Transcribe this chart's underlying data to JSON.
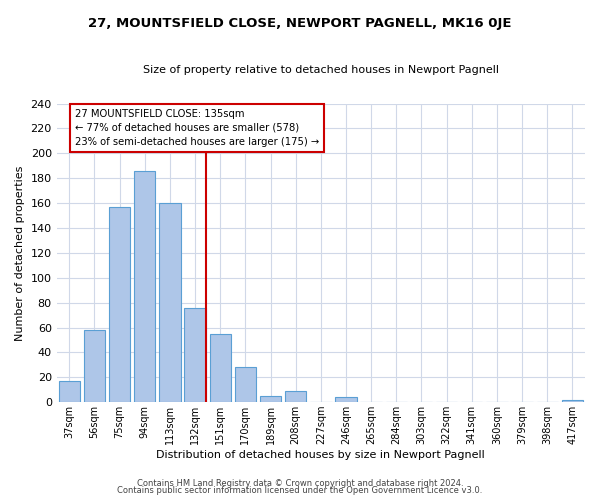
{
  "title": "27, MOUNTSFIELD CLOSE, NEWPORT PAGNELL, MK16 0JE",
  "subtitle": "Size of property relative to detached houses in Newport Pagnell",
  "xlabel": "Distribution of detached houses by size in Newport Pagnell",
  "ylabel": "Number of detached properties",
  "bar_labels": [
    "37sqm",
    "56sqm",
    "75sqm",
    "94sqm",
    "113sqm",
    "132sqm",
    "151sqm",
    "170sqm",
    "189sqm",
    "208sqm",
    "227sqm",
    "246sqm",
    "265sqm",
    "284sqm",
    "303sqm",
    "322sqm",
    "341sqm",
    "360sqm",
    "379sqm",
    "398sqm",
    "417sqm"
  ],
  "bar_values": [
    17,
    58,
    157,
    186,
    160,
    76,
    55,
    28,
    5,
    9,
    0,
    4,
    0,
    0,
    0,
    0,
    0,
    0,
    0,
    0,
    2
  ],
  "bar_color": "#aec6e8",
  "bar_edge_color": "#5a9fd4",
  "vline_color": "#cc0000",
  "annotation_line1": "27 MOUNTSFIELD CLOSE: 135sqm",
  "annotation_line2": "← 77% of detached houses are smaller (578)",
  "annotation_line3": "23% of semi-detached houses are larger (175) →",
  "annotation_box_color": "#ffffff",
  "annotation_box_edge": "#cc0000",
  "ylim": [
    0,
    240
  ],
  "yticks": [
    0,
    20,
    40,
    60,
    80,
    100,
    120,
    140,
    160,
    180,
    200,
    220,
    240
  ],
  "footer1": "Contains HM Land Registry data © Crown copyright and database right 2024.",
  "footer2": "Contains public sector information licensed under the Open Government Licence v3.0.",
  "background_color": "#ffffff",
  "grid_color": "#d0d8e8"
}
